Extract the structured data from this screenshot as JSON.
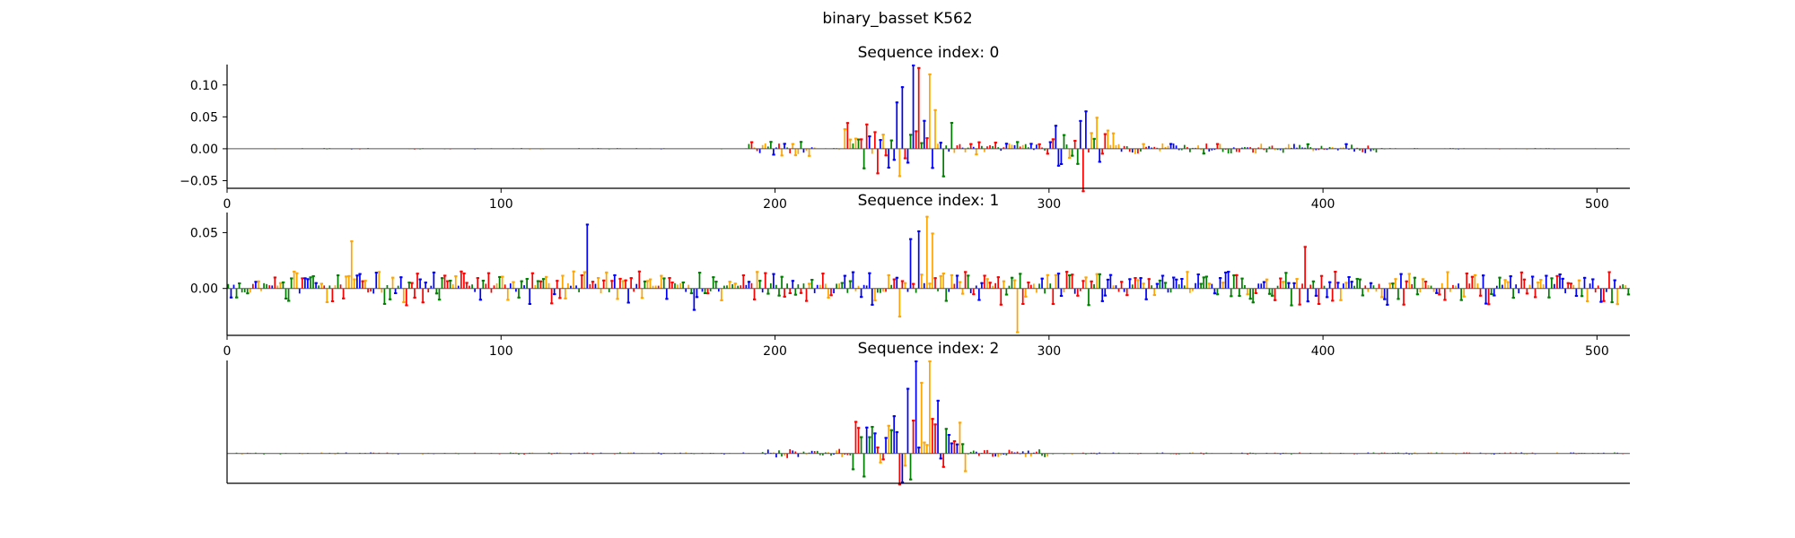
{
  "figure": {
    "title": "binary_basset K562"
  },
  "colors": {
    "A": "#008000",
    "C": "#0000ff",
    "G": "#ffa500",
    "T": "#ff0000",
    "baseline": "#555555"
  },
  "chart_data": [
    {
      "type": "sequence-logo",
      "title": "Sequence index: 0",
      "xlim": [
        0,
        512
      ],
      "ylim": [
        -0.062,
        0.132
      ],
      "x_ticks": [
        0,
        100,
        200,
        300,
        400,
        500
      ],
      "y_ticks": [
        {
          "value": 0.1,
          "label": "0.10"
        },
        {
          "value": 0.05,
          "label": "0.05"
        },
        {
          "value": 0.0,
          "label": "0.00"
        },
        {
          "value": -0.05,
          "label": "−0.05"
        }
      ],
      "seed": 17,
      "noise": 0.0012,
      "active": [
        [
          190,
          215,
          0.013
        ],
        [
          225,
          262,
          0.05
        ],
        [
          262,
          300,
          0.012
        ],
        [
          300,
          325,
          0.038
        ],
        [
          325,
          420,
          0.009
        ]
      ],
      "peaks": [
        {
          "x": 250,
          "value": 0.132,
          "base": "C"
        },
        {
          "x": 252,
          "value": 0.128,
          "base": "T"
        },
        {
          "x": 246,
          "value": 0.098,
          "base": "C"
        },
        {
          "x": 244,
          "value": 0.074,
          "base": "C"
        },
        {
          "x": 256,
          "value": 0.118,
          "base": "G"
        },
        {
          "x": 258,
          "value": 0.062,
          "base": "G"
        },
        {
          "x": 264,
          "value": 0.042,
          "base": "A"
        },
        {
          "x": 313,
          "value": 0.06,
          "base": "C"
        },
        {
          "x": 317,
          "value": 0.05,
          "base": "G"
        },
        {
          "x": 311,
          "value": 0.045,
          "base": "C"
        },
        {
          "x": 312,
          "value": -0.068,
          "base": "T"
        },
        {
          "x": 237,
          "value": -0.04,
          "base": "T"
        }
      ]
    },
    {
      "type": "sequence-logo",
      "title": "Sequence index: 1",
      "xlim": [
        0,
        512
      ],
      "ylim": [
        -0.042,
        0.068
      ],
      "x_ticks": [
        0,
        100,
        200,
        300,
        400,
        500
      ],
      "y_ticks": [
        {
          "value": 0.05,
          "label": "0.05"
        },
        {
          "value": 0.0,
          "label": "0.00"
        }
      ],
      "seed": 53,
      "noise": 0.016,
      "active": [],
      "peaks": [
        {
          "x": 131,
          "value": 0.058,
          "base": "C"
        },
        {
          "x": 255,
          "value": 0.065,
          "base": "G"
        },
        {
          "x": 252,
          "value": 0.052,
          "base": "C"
        },
        {
          "x": 257,
          "value": 0.05,
          "base": "G"
        },
        {
          "x": 249,
          "value": 0.045,
          "base": "C"
        },
        {
          "x": 45,
          "value": 0.043,
          "base": "G"
        },
        {
          "x": 288,
          "value": -0.04,
          "base": "G"
        },
        {
          "x": 245,
          "value": -0.026,
          "base": "G"
        },
        {
          "x": 393,
          "value": 0.038,
          "base": "T"
        },
        {
          "x": 170,
          "value": -0.02,
          "base": "C"
        }
      ]
    },
    {
      "type": "sequence-logo",
      "title": "Sequence index: 2",
      "xlim": [
        0,
        512
      ],
      "ylim": [
        -0.25,
        0.78
      ],
      "x_ticks": [],
      "y_ticks": [],
      "seed": 91,
      "noise": 0.009,
      "active": [
        [
          195,
          228,
          0.04
        ],
        [
          228,
          270,
          0.3
        ],
        [
          270,
          300,
          0.035
        ]
      ],
      "peaks": [
        {
          "x": 251,
          "value": 0.78,
          "base": "C"
        },
        {
          "x": 256,
          "value": 0.78,
          "base": "G"
        },
        {
          "x": 248,
          "value": 0.55,
          "base": "C"
        },
        {
          "x": 253,
          "value": 0.6,
          "base": "G"
        },
        {
          "x": 259,
          "value": 0.45,
          "base": "C"
        },
        {
          "x": 243,
          "value": 0.32,
          "base": "C"
        },
        {
          "x": 246,
          "value": -0.25,
          "base": "C"
        },
        {
          "x": 261,
          "value": -0.12,
          "base": "T"
        },
        {
          "x": 228,
          "value": -0.14,
          "base": "A"
        }
      ]
    }
  ]
}
